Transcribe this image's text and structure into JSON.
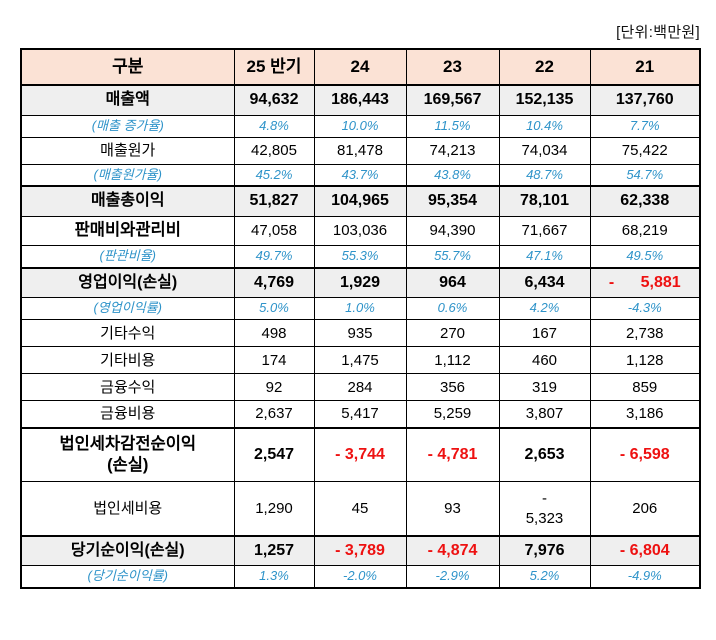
{
  "unit_label": "[단위:백만원]",
  "colors": {
    "header_peach": "#fbe2d5",
    "subtotal_gray": "#efefef",
    "ratio_blue": "#2e93c9",
    "negative_red": "#ee1111",
    "border_black": "#000000"
  },
  "table": {
    "columns": [
      "구분",
      "25 반기",
      "24",
      "23",
      "22",
      "21"
    ],
    "rows": [
      {
        "label": "매출액",
        "style": "subtotal",
        "values": [
          "94,632",
          "186,443",
          "169,567",
          "152,135",
          "137,760"
        ]
      },
      {
        "label": "(매출 증가율)",
        "style": "ratio",
        "values": [
          "4.8%",
          "10.0%",
          "11.5%",
          "10.4%",
          "7.7%"
        ]
      },
      {
        "label": "매출원가",
        "style": "normal",
        "values": [
          "42,805",
          "81,478",
          "74,213",
          "74,034",
          "75,422"
        ]
      },
      {
        "label": "(매출원가율)",
        "style": "ratio",
        "values": [
          "45.2%",
          "43.7%",
          "43.8%",
          "48.7%",
          "54.7%"
        ]
      },
      {
        "label": "매출총이익",
        "style": "subtotal",
        "thick_top": true,
        "values": [
          "51,827",
          "104,965",
          "95,354",
          "78,101",
          "62,338"
        ]
      },
      {
        "label": "판매비와관리비",
        "style": "bold-label",
        "values": [
          "47,058",
          "103,036",
          "94,390",
          "71,667",
          "68,219"
        ]
      },
      {
        "label": "(판관비율)",
        "style": "ratio",
        "values": [
          "49.7%",
          "55.3%",
          "55.7%",
          "47.1%",
          "49.5%"
        ]
      },
      {
        "label": "영업이익(손실)",
        "style": "subtotal",
        "thick_top": true,
        "values": [
          "4,769",
          "1,929",
          "964",
          "6,434",
          "- 5,881"
        ],
        "red": [
          4
        ],
        "spread": [
          4
        ]
      },
      {
        "label": "(영업이익률)",
        "style": "ratio",
        "values": [
          "5.0%",
          "1.0%",
          "0.6%",
          "4.2%",
          "-4.3%"
        ]
      },
      {
        "label": "기타수익",
        "style": "normal",
        "values": [
          "498",
          "935",
          "270",
          "167",
          "2,738"
        ]
      },
      {
        "label": "기타비용",
        "style": "normal",
        "values": [
          "174",
          "1,475",
          "1,112",
          "460",
          "1,128"
        ]
      },
      {
        "label": "금융수익",
        "style": "normal",
        "values": [
          "92",
          "284",
          "356",
          "319",
          "859"
        ]
      },
      {
        "label": "금융비용",
        "style": "normal",
        "values": [
          "2,637",
          "5,417",
          "5,259",
          "3,807",
          "3,186"
        ]
      },
      {
        "label": "법인세차감전순이익\n(손실)",
        "style": "bold",
        "thick_top": true,
        "values": [
          "2,547",
          "- 3,744",
          "- 4,781",
          "2,653",
          "- 6,598"
        ],
        "red": [
          1,
          2,
          4
        ]
      },
      {
        "label": "법인세비용",
        "style": "normal",
        "values": [
          "1,290",
          "45",
          "93",
          "-\n5,323",
          "206"
        ]
      },
      {
        "label": "당기순이익(손실)",
        "style": "subtotal",
        "thick_top": true,
        "values": [
          "1,257",
          "- 3,789",
          "- 4,874",
          "7,976",
          "- 6,804"
        ],
        "red": [
          1,
          2,
          4
        ]
      },
      {
        "label": "(당기순이익률)",
        "style": "ratio",
        "values": [
          "1.3%",
          "-2.0%",
          "-2.9%",
          "5.2%",
          "-4.9%"
        ]
      }
    ]
  }
}
